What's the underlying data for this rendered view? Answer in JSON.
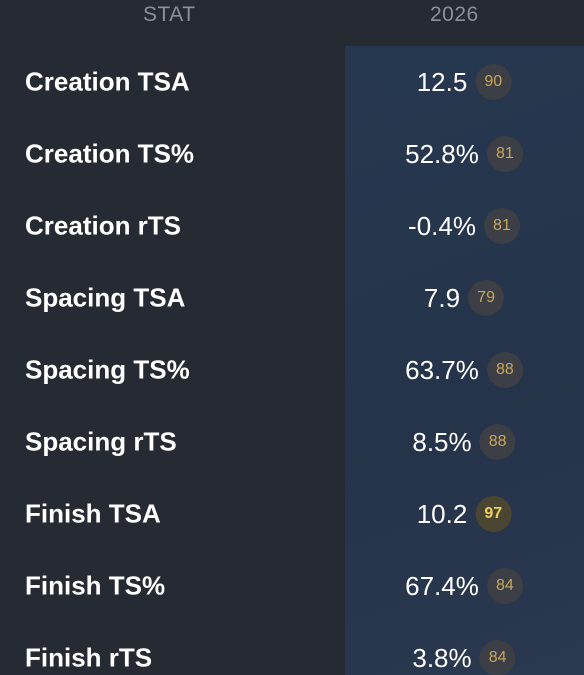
{
  "header": {
    "stat_label": "STAT",
    "year_label": "2026"
  },
  "colors": {
    "background": "#262a33",
    "highlight_column": "#25344a",
    "badge_bg": "#3c3f45",
    "badge_text": "#c9a65a",
    "badge_elite_text": "#f0d060"
  },
  "rows": [
    {
      "label": "Creation TSA",
      "value": "12.5",
      "percentile": "90"
    },
    {
      "label": "Creation TS%",
      "value": "52.8%",
      "percentile": "81"
    },
    {
      "label": "Creation rTS",
      "value": "-0.4%",
      "percentile": "81"
    },
    {
      "label": "Spacing TSA",
      "value": "7.9",
      "percentile": "79"
    },
    {
      "label": "Spacing TS%",
      "value": "63.7%",
      "percentile": "88"
    },
    {
      "label": "Spacing rTS",
      "value": "8.5%",
      "percentile": "88"
    },
    {
      "label": "Finish TSA",
      "value": "10.2",
      "percentile": "97"
    },
    {
      "label": "Finish TS%",
      "value": "67.4%",
      "percentile": "84"
    },
    {
      "label": "Finish rTS",
      "value": "3.8%",
      "percentile": "84"
    }
  ]
}
